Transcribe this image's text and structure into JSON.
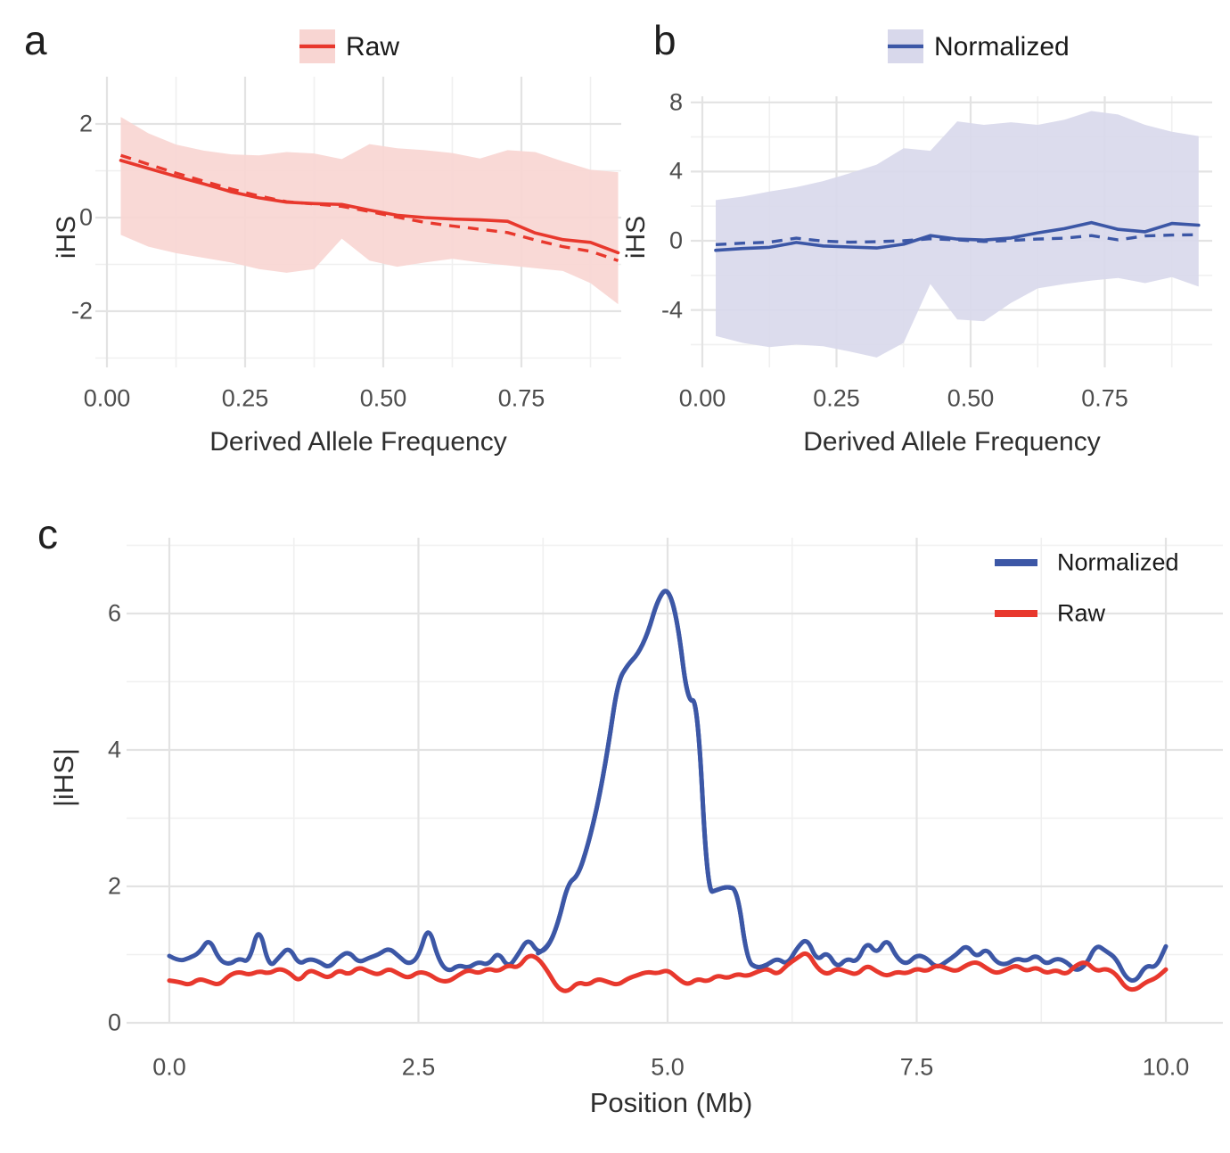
{
  "colors": {
    "raw_line": "#E8382D",
    "raw_ribbon": "#F8D5D2",
    "normalized_line": "#3C57A6",
    "normalized_ribbon": "#D8D8EB",
    "grid_major": "#E3E3E3",
    "grid_minor": "#F0F0F0",
    "tick_text": "#4d4d4d",
    "title_text": "#2e2e2e"
  },
  "figure": {
    "panels": [
      {
        "label": "a",
        "legend_label": "Raw",
        "y_axis": {
          "title": "iHS",
          "tick_labels": [
            "2",
            "0",
            "-2"
          ]
        },
        "x_axis": {
          "title": "Derived Allele Frequency",
          "tick_labels": [
            "0.00",
            "0.25",
            "0.50",
            "0.75"
          ]
        }
      },
      {
        "label": "b",
        "legend_label": "Normalized",
        "y_axis": {
          "title": "iHS",
          "tick_labels": [
            "8",
            "4",
            "0",
            "-4"
          ]
        },
        "x_axis": {
          "title": "Derived Allele Frequency",
          "tick_labels": [
            "0.00",
            "0.25",
            "0.50",
            "0.75"
          ]
        }
      },
      {
        "label": "c",
        "legend_labels": [
          "Normalized",
          "Raw"
        ],
        "y_axis": {
          "title": "|iHS|",
          "tick_labels": [
            "0",
            "2",
            "4",
            "6"
          ]
        },
        "x_axis": {
          "title": "Position (Mb)",
          "tick_labels": [
            "0.0",
            "2.5",
            "5.0",
            "7.5",
            "10.0"
          ]
        }
      }
    ]
  },
  "chart_data": [
    {
      "id": "a",
      "type": "line",
      "title": "",
      "xlabel": "Derived Allele Frequency",
      "ylabel": "iHS",
      "legend": [
        "Raw"
      ],
      "legend_position": "top",
      "xlim": [
        0.0,
        0.95
      ],
      "ylim": [
        -3.2,
        3.0
      ],
      "grid": true,
      "x_ticks": [
        0.0,
        0.25,
        0.5,
        0.75
      ],
      "y_ticks": [
        2,
        0,
        -2
      ],
      "x": [
        0.025,
        0.075,
        0.125,
        0.175,
        0.225,
        0.275,
        0.325,
        0.375,
        0.425,
        0.475,
        0.525,
        0.575,
        0.625,
        0.675,
        0.725,
        0.775,
        0.825,
        0.875,
        0.925
      ],
      "series": [
        {
          "name": "raw-mean",
          "style": "solid",
          "values": [
            1.22,
            1.05,
            0.88,
            0.72,
            0.55,
            0.42,
            0.33,
            0.3,
            0.28,
            0.16,
            0.05,
            0.0,
            -0.03,
            -0.05,
            -0.08,
            -0.33,
            -0.47,
            -0.53,
            -0.75
          ]
        },
        {
          "name": "raw-median",
          "style": "dashed",
          "values": [
            1.33,
            1.14,
            0.95,
            0.78,
            0.61,
            0.46,
            0.34,
            0.29,
            0.24,
            0.13,
            0.01,
            -0.1,
            -0.18,
            -0.25,
            -0.32,
            -0.48,
            -0.62,
            -0.72,
            -0.92
          ]
        },
        {
          "name": "raw-ribbon-upper",
          "style": "ribbon-upper",
          "values": [
            2.15,
            1.8,
            1.56,
            1.43,
            1.35,
            1.33,
            1.4,
            1.37,
            1.25,
            1.57,
            1.48,
            1.44,
            1.38,
            1.26,
            1.44,
            1.4,
            1.2,
            1.02,
            0.97
          ]
        },
        {
          "name": "raw-ribbon-lower",
          "style": "ribbon-lower",
          "values": [
            -0.37,
            -0.62,
            -0.76,
            -0.86,
            -0.96,
            -1.1,
            -1.18,
            -1.1,
            -0.45,
            -0.92,
            -1.05,
            -0.96,
            -0.88,
            -0.96,
            -1.02,
            -1.08,
            -1.14,
            -1.4,
            -1.85
          ]
        }
      ]
    },
    {
      "id": "b",
      "type": "line",
      "title": "",
      "xlabel": "Derived Allele Frequency",
      "ylabel": "iHS",
      "legend": [
        "Normalized"
      ],
      "legend_position": "top",
      "xlim": [
        0.0,
        0.95
      ],
      "ylim": [
        -7.8,
        8.4
      ],
      "grid": true,
      "x_ticks": [
        0.0,
        0.25,
        0.5,
        0.75
      ],
      "y_ticks": [
        8,
        4,
        0,
        -4
      ],
      "x": [
        0.025,
        0.075,
        0.125,
        0.175,
        0.225,
        0.275,
        0.325,
        0.375,
        0.425,
        0.475,
        0.525,
        0.575,
        0.625,
        0.675,
        0.725,
        0.775,
        0.825,
        0.875,
        0.925
      ],
      "series": [
        {
          "name": "normalized-mean",
          "style": "solid",
          "values": [
            -0.55,
            -0.45,
            -0.38,
            -0.1,
            -0.3,
            -0.36,
            -0.42,
            -0.2,
            0.3,
            0.1,
            0.04,
            0.16,
            0.46,
            0.7,
            1.05,
            0.66,
            0.52,
            1.0,
            0.9
          ]
        },
        {
          "name": "normalized-median",
          "style": "dashed",
          "values": [
            -0.22,
            -0.14,
            -0.08,
            0.15,
            -0.02,
            -0.08,
            -0.05,
            0.0,
            0.12,
            0.05,
            -0.04,
            0.02,
            0.1,
            0.15,
            0.3,
            0.05,
            0.28,
            0.33,
            0.35
          ]
        },
        {
          "name": "normalized-ribbon-upper",
          "style": "ribbon-upper",
          "values": [
            2.35,
            2.55,
            2.85,
            3.1,
            3.45,
            3.9,
            4.4,
            5.35,
            5.2,
            6.9,
            6.7,
            6.85,
            6.7,
            7.0,
            7.5,
            7.3,
            6.7,
            6.3,
            6.05
          ]
        },
        {
          "name": "normalized-ribbon-lower",
          "style": "ribbon-lower",
          "values": [
            -5.5,
            -5.9,
            -6.15,
            -6.0,
            -6.1,
            -6.4,
            -6.75,
            -5.9,
            -2.5,
            -4.55,
            -4.65,
            -3.6,
            -2.75,
            -2.5,
            -2.3,
            -2.15,
            -2.45,
            -2.1,
            -2.65
          ]
        }
      ]
    },
    {
      "id": "c",
      "type": "line",
      "title": "",
      "xlabel": "Position (Mb)",
      "ylabel": "|iHS|",
      "legend": [
        "Normalized",
        "Raw"
      ],
      "legend_position": "top-right",
      "xlim": [
        0.0,
        10.0
      ],
      "ylim": [
        0,
        7.1
      ],
      "grid": true,
      "x_ticks": [
        0.0,
        2.5,
        5.0,
        7.5,
        10.0
      ],
      "y_ticks": [
        0,
        2,
        4,
        6
      ],
      "x_start": 0.0,
      "x_step": 0.1,
      "x_end": 10.0,
      "series": [
        {
          "name": "normalized-abs-ihs",
          "style": "solid",
          "color_key": "normalized_line",
          "values": [
            0.98,
            0.9,
            0.95,
            1.02,
            1.25,
            0.92,
            0.85,
            0.95,
            0.88,
            1.45,
            0.8,
            0.96,
            1.12,
            0.85,
            0.94,
            0.9,
            0.8,
            0.96,
            1.05,
            0.88,
            0.95,
            1.0,
            1.1,
            0.98,
            0.85,
            0.96,
            1.45,
            0.92,
            0.74,
            0.85,
            0.8,
            0.9,
            0.84,
            1.05,
            0.8,
            1.0,
            1.25,
            1.02,
            1.1,
            1.45,
            2.05,
            2.15,
            2.6,
            3.2,
            4.0,
            5.0,
            5.25,
            5.4,
            5.7,
            6.2,
            6.4,
            5.9,
            4.7,
            4.75,
            1.9,
            1.95,
            2.0,
            1.95,
            0.9,
            0.8,
            0.85,
            0.95,
            0.85,
            1.1,
            1.25,
            0.9,
            1.05,
            0.8,
            0.95,
            0.88,
            1.2,
            1.0,
            1.25,
            0.95,
            0.85,
            1.0,
            0.95,
            0.8,
            0.9,
            1.0,
            1.15,
            0.95,
            1.1,
            0.88,
            0.85,
            0.95,
            0.9,
            1.0,
            0.85,
            0.95,
            0.9,
            0.75,
            0.85,
            1.15,
            1.05,
            0.95,
            0.65,
            0.6,
            0.85,
            0.8,
            1.12
          ]
        },
        {
          "name": "raw-abs-ihs",
          "style": "solid",
          "color_key": "raw_line",
          "values": [
            0.62,
            0.6,
            0.55,
            0.65,
            0.6,
            0.55,
            0.7,
            0.75,
            0.7,
            0.76,
            0.72,
            0.8,
            0.74,
            0.6,
            0.78,
            0.72,
            0.65,
            0.78,
            0.7,
            0.82,
            0.75,
            0.7,
            0.8,
            0.72,
            0.65,
            0.75,
            0.72,
            0.62,
            0.6,
            0.7,
            0.78,
            0.72,
            0.8,
            0.75,
            0.85,
            0.8,
            1.0,
            0.95,
            0.75,
            0.5,
            0.45,
            0.6,
            0.55,
            0.65,
            0.6,
            0.55,
            0.65,
            0.7,
            0.75,
            0.72,
            0.78,
            0.65,
            0.55,
            0.65,
            0.6,
            0.7,
            0.65,
            0.72,
            0.68,
            0.75,
            0.8,
            0.7,
            0.85,
            0.95,
            1.05,
            0.8,
            0.7,
            0.8,
            0.75,
            0.7,
            0.85,
            0.75,
            0.68,
            0.75,
            0.72,
            0.8,
            0.75,
            0.85,
            0.8,
            0.75,
            0.85,
            0.9,
            0.8,
            0.72,
            0.78,
            0.85,
            0.75,
            0.82,
            0.72,
            0.78,
            0.7,
            0.85,
            0.9,
            0.75,
            0.8,
            0.72,
            0.5,
            0.48,
            0.6,
            0.65,
            0.78
          ]
        }
      ]
    }
  ]
}
